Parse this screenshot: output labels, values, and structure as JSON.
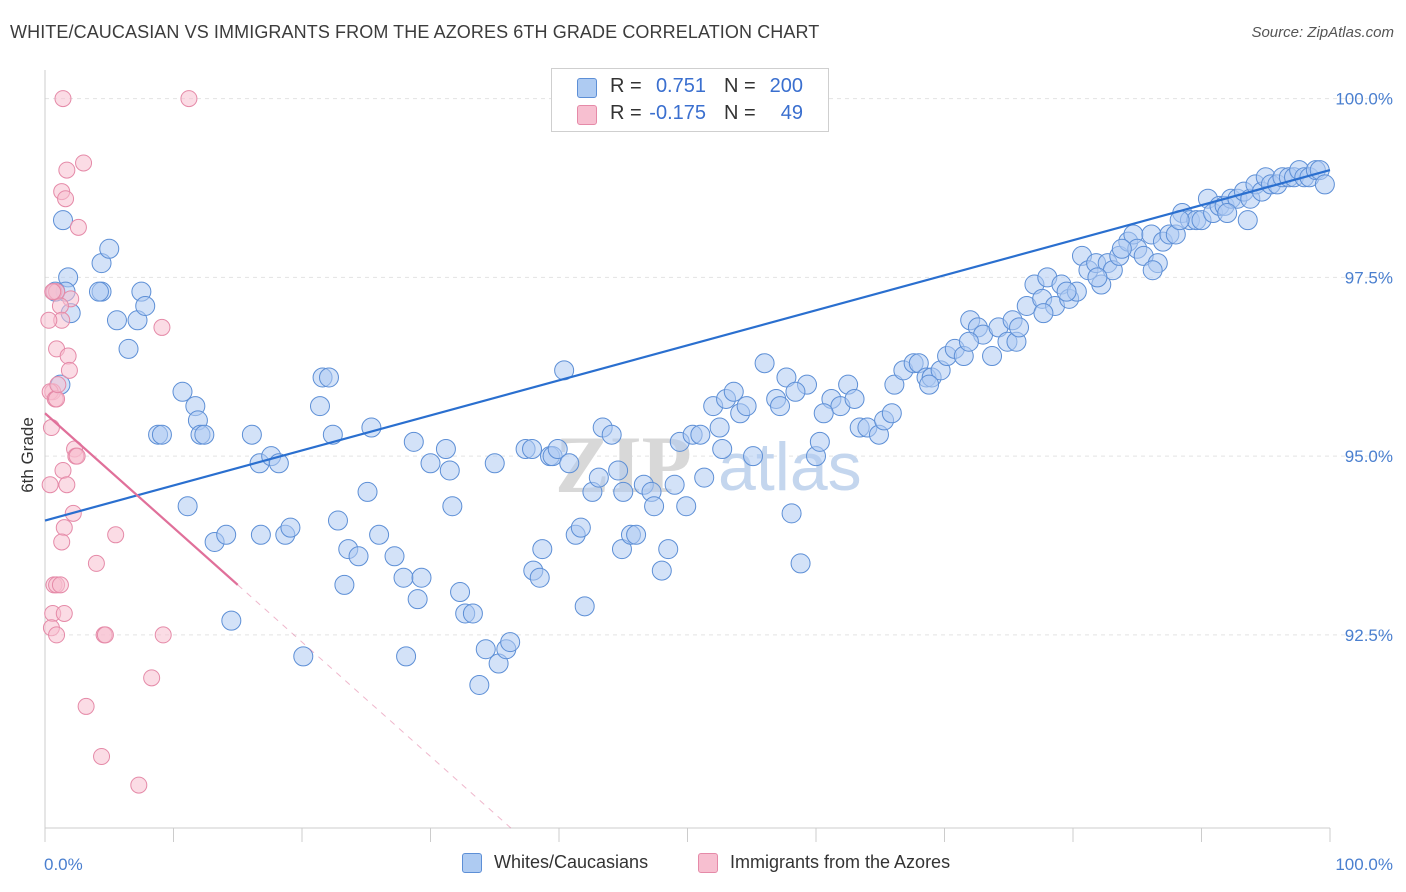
{
  "header": {
    "title": "WHITE/CAUCASIAN VS IMMIGRANTS FROM THE AZORES 6TH GRADE CORRELATION CHART",
    "source": "Source: ZipAtlas.com"
  },
  "legend": {
    "rows": [
      {
        "r_label": "R =",
        "r_value": "0.751",
        "n_label": "N =",
        "n_value": "200"
      },
      {
        "r_label": "R =",
        "r_value": "-0.175",
        "n_label": "N =",
        "n_value": "49"
      }
    ]
  },
  "watermark": {
    "zip": "ZIP",
    "atlas": "atlas"
  },
  "colors": {
    "blue_fill": "#aecbf2",
    "blue_stroke": "#5d8fd6",
    "blue_line": "#2a6fcf",
    "pink_fill": "#f7bfd0",
    "pink_stroke": "#e58aa8",
    "pink_line": "#e0709a",
    "grid": "#e3e3e3",
    "tick_text": "#4a7fcf"
  },
  "chart_data": {
    "type": "scatter",
    "title": "WHITE/CAUCASIAN VS IMMIGRANTS FROM THE AZORES 6TH GRADE CORRELATION CHART",
    "ylabel": "6th Grade",
    "xlabel": "",
    "xlim": [
      0,
      100
    ],
    "ylim": [
      89.8,
      100.4
    ],
    "x_tick_labels": [
      "0.0%",
      "100.0%"
    ],
    "y_ticks": [
      {
        "value": 92.5,
        "label": "92.5%"
      },
      {
        "value": 95.0,
        "label": "95.0%"
      },
      {
        "value": 97.5,
        "label": "97.5%"
      },
      {
        "value": 100.0,
        "label": "100.0%"
      }
    ],
    "grid": true,
    "legend_position": "top-center",
    "series": [
      {
        "name": "Whites/Caucasians",
        "color": "#aecbf2",
        "r": 0.751,
        "n": 200,
        "trend": {
          "x": [
            0,
            100
          ],
          "y": [
            94.1,
            99.0
          ]
        },
        "points": [
          [
            1.4,
            98.3
          ],
          [
            1.8,
            97.5
          ],
          [
            1.6,
            97.3
          ],
          [
            2.0,
            97.0
          ],
          [
            0.8,
            97.3
          ],
          [
            1.2,
            96.0
          ],
          [
            4.4,
            97.3
          ],
          [
            4.2,
            97.3
          ],
          [
            4.4,
            97.7
          ],
          [
            5.0,
            97.9
          ],
          [
            5.6,
            96.9
          ],
          [
            6.5,
            96.5
          ],
          [
            7.2,
            96.9
          ],
          [
            7.5,
            97.3
          ],
          [
            7.8,
            97.1
          ],
          [
            8.8,
            95.3
          ],
          [
            9.1,
            95.3
          ],
          [
            10.7,
            95.9
          ],
          [
            11.1,
            94.3
          ],
          [
            11.7,
            95.7
          ],
          [
            11.9,
            95.5
          ],
          [
            12.1,
            95.3
          ],
          [
            12.4,
            95.3
          ],
          [
            13.2,
            93.8
          ],
          [
            14.1,
            93.9
          ],
          [
            14.5,
            92.7
          ],
          [
            16.1,
            95.3
          ],
          [
            16.7,
            94.9
          ],
          [
            16.8,
            93.9
          ],
          [
            17.6,
            95.0
          ],
          [
            18.2,
            94.9
          ],
          [
            18.7,
            93.9
          ],
          [
            19.1,
            94.0
          ],
          [
            20.1,
            92.2
          ],
          [
            21.4,
            95.7
          ],
          [
            21.6,
            96.1
          ],
          [
            22.1,
            96.1
          ],
          [
            22.4,
            95.3
          ],
          [
            22.8,
            94.1
          ],
          [
            23.3,
            93.2
          ],
          [
            23.6,
            93.7
          ],
          [
            24.4,
            93.6
          ],
          [
            25.1,
            94.5
          ],
          [
            25.4,
            95.4
          ],
          [
            26.0,
            93.9
          ],
          [
            27.2,
            93.6
          ],
          [
            27.9,
            93.3
          ],
          [
            28.1,
            92.2
          ],
          [
            28.7,
            95.2
          ],
          [
            29.0,
            93.0
          ],
          [
            29.3,
            93.3
          ],
          [
            30.0,
            94.9
          ],
          [
            31.2,
            95.1
          ],
          [
            31.5,
            94.8
          ],
          [
            31.7,
            94.3
          ],
          [
            32.3,
            93.1
          ],
          [
            32.7,
            92.8
          ],
          [
            33.3,
            92.8
          ],
          [
            33.8,
            91.8
          ],
          [
            34.3,
            92.3
          ],
          [
            35.0,
            94.9
          ],
          [
            35.3,
            92.1
          ],
          [
            35.9,
            92.3
          ],
          [
            36.2,
            92.4
          ],
          [
            37.4,
            95.1
          ],
          [
            37.9,
            95.1
          ],
          [
            38.0,
            93.4
          ],
          [
            38.5,
            93.3
          ],
          [
            38.7,
            93.7
          ],
          [
            39.3,
            95.0
          ],
          [
            39.5,
            95.0
          ],
          [
            39.9,
            95.1
          ],
          [
            40.4,
            96.2
          ],
          [
            40.8,
            94.9
          ],
          [
            41.3,
            93.9
          ],
          [
            42.0,
            92.9
          ],
          [
            42.6,
            94.5
          ],
          [
            43.1,
            94.7
          ],
          [
            43.4,
            95.4
          ],
          [
            44.1,
            95.3
          ],
          [
            44.6,
            94.8
          ],
          [
            44.9,
            93.7
          ],
          [
            45.6,
            93.9
          ],
          [
            46.0,
            93.9
          ],
          [
            46.6,
            94.6
          ],
          [
            47.2,
            94.5
          ],
          [
            47.4,
            94.3
          ],
          [
            48.0,
            93.4
          ],
          [
            48.5,
            93.7
          ],
          [
            49.4,
            95.2
          ],
          [
            49.9,
            94.3
          ],
          [
            50.4,
            95.3
          ],
          [
            51.0,
            95.3
          ],
          [
            51.3,
            94.7
          ],
          [
            52.0,
            95.7
          ],
          [
            52.5,
            95.4
          ],
          [
            53.0,
            95.8
          ],
          [
            53.6,
            95.9
          ],
          [
            54.1,
            95.6
          ],
          [
            55.1,
            95.0
          ],
          [
            56.0,
            96.3
          ],
          [
            56.9,
            95.8
          ],
          [
            57.2,
            95.7
          ],
          [
            57.7,
            96.1
          ],
          [
            58.1,
            94.2
          ],
          [
            58.8,
            93.5
          ],
          [
            59.3,
            96.0
          ],
          [
            60.0,
            95.0
          ],
          [
            60.3,
            95.2
          ],
          [
            61.2,
            95.8
          ],
          [
            61.9,
            95.7
          ],
          [
            62.5,
            96.0
          ],
          [
            63.4,
            95.4
          ],
          [
            64.0,
            95.4
          ],
          [
            64.9,
            95.3
          ],
          [
            65.3,
            95.5
          ],
          [
            66.1,
            96.0
          ],
          [
            66.8,
            96.2
          ],
          [
            67.6,
            96.3
          ],
          [
            68.0,
            96.3
          ],
          [
            68.6,
            96.1
          ],
          [
            69.0,
            96.1
          ],
          [
            69.7,
            96.2
          ],
          [
            70.2,
            96.4
          ],
          [
            70.8,
            96.5
          ],
          [
            71.5,
            96.4
          ],
          [
            72.0,
            96.9
          ],
          [
            72.6,
            96.8
          ],
          [
            73.0,
            96.7
          ],
          [
            73.7,
            96.4
          ],
          [
            74.2,
            96.8
          ],
          [
            74.9,
            96.6
          ],
          [
            75.3,
            96.9
          ],
          [
            75.6,
            96.6
          ],
          [
            76.4,
            97.1
          ],
          [
            77.0,
            97.4
          ],
          [
            77.6,
            97.2
          ],
          [
            78.0,
            97.5
          ],
          [
            78.6,
            97.1
          ],
          [
            79.1,
            97.4
          ],
          [
            79.7,
            97.2
          ],
          [
            80.3,
            97.3
          ],
          [
            80.7,
            97.8
          ],
          [
            81.2,
            97.6
          ],
          [
            81.8,
            97.7
          ],
          [
            82.2,
            97.4
          ],
          [
            82.7,
            97.7
          ],
          [
            83.1,
            97.6
          ],
          [
            83.6,
            97.8
          ],
          [
            84.3,
            98.0
          ],
          [
            84.7,
            98.1
          ],
          [
            85.0,
            97.9
          ],
          [
            85.5,
            97.8
          ],
          [
            86.1,
            98.1
          ],
          [
            86.6,
            97.7
          ],
          [
            87.0,
            98.0
          ],
          [
            87.5,
            98.1
          ],
          [
            88.0,
            98.1
          ],
          [
            88.5,
            98.4
          ],
          [
            89.1,
            98.3
          ],
          [
            89.6,
            98.3
          ],
          [
            90.0,
            98.3
          ],
          [
            90.5,
            98.6
          ],
          [
            90.9,
            98.4
          ],
          [
            91.4,
            98.5
          ],
          [
            91.8,
            98.5
          ],
          [
            92.3,
            98.6
          ],
          [
            92.8,
            98.6
          ],
          [
            93.3,
            98.7
          ],
          [
            93.8,
            98.6
          ],
          [
            94.2,
            98.8
          ],
          [
            94.7,
            98.7
          ],
          [
            95.0,
            98.9
          ],
          [
            95.4,
            98.8
          ],
          [
            95.9,
            98.8
          ],
          [
            96.3,
            98.9
          ],
          [
            96.8,
            98.9
          ],
          [
            97.2,
            98.9
          ],
          [
            97.6,
            99.0
          ],
          [
            98.0,
            98.9
          ],
          [
            98.4,
            98.9
          ],
          [
            98.9,
            99.0
          ],
          [
            99.2,
            99.0
          ],
          [
            99.6,
            98.8
          ],
          [
            93.6,
            98.3
          ],
          [
            92.0,
            98.4
          ],
          [
            88.3,
            98.3
          ],
          [
            86.2,
            97.6
          ],
          [
            83.8,
            97.9
          ],
          [
            81.9,
            97.5
          ],
          [
            79.5,
            97.3
          ],
          [
            77.7,
            97.0
          ],
          [
            75.8,
            96.8
          ],
          [
            71.9,
            96.6
          ],
          [
            68.8,
            96.0
          ],
          [
            65.9,
            95.6
          ],
          [
            63.0,
            95.8
          ],
          [
            60.6,
            95.6
          ],
          [
            58.4,
            95.9
          ],
          [
            54.6,
            95.7
          ],
          [
            52.7,
            95.1
          ],
          [
            49.0,
            94.6
          ],
          [
            45.0,
            94.5
          ],
          [
            41.7,
            94.0
          ]
        ]
      },
      {
        "name": "Immigrants from the Azores",
        "color": "#f7bfd0",
        "r": -0.175,
        "n": 49,
        "trend": {
          "x": [
            0,
            15
          ],
          "y": [
            95.6,
            93.2
          ]
        },
        "points": [
          [
            1.4,
            100.0
          ],
          [
            11.2,
            100.0
          ],
          [
            3.0,
            99.1
          ],
          [
            1.7,
            99.0
          ],
          [
            1.3,
            98.7
          ],
          [
            1.6,
            98.6
          ],
          [
            2.6,
            98.2
          ],
          [
            0.7,
            97.3
          ],
          [
            0.9,
            97.3
          ],
          [
            2.0,
            97.2
          ],
          [
            1.2,
            97.1
          ],
          [
            1.3,
            96.9
          ],
          [
            0.3,
            96.9
          ],
          [
            9.1,
            96.8
          ],
          [
            0.9,
            96.5
          ],
          [
            1.8,
            96.4
          ],
          [
            1.9,
            96.2
          ],
          [
            0.6,
            95.9
          ],
          [
            0.4,
            95.9
          ],
          [
            0.8,
            95.8
          ],
          [
            0.9,
            95.8
          ],
          [
            0.5,
            95.4
          ],
          [
            2.3,
            95.1
          ],
          [
            2.4,
            95.0
          ],
          [
            2.5,
            95.0
          ],
          [
            1.4,
            94.8
          ],
          [
            0.4,
            94.6
          ],
          [
            1.7,
            94.6
          ],
          [
            2.2,
            94.2
          ],
          [
            1.5,
            94.0
          ],
          [
            5.5,
            93.9
          ],
          [
            1.3,
            93.8
          ],
          [
            4.0,
            93.5
          ],
          [
            0.7,
            93.2
          ],
          [
            0.9,
            93.2
          ],
          [
            1.2,
            93.2
          ],
          [
            0.6,
            92.8
          ],
          [
            1.5,
            92.8
          ],
          [
            0.5,
            92.6
          ],
          [
            0.9,
            92.5
          ],
          [
            4.6,
            92.5
          ],
          [
            4.7,
            92.5
          ],
          [
            9.2,
            92.5
          ],
          [
            8.3,
            91.9
          ],
          [
            3.2,
            91.5
          ],
          [
            4.4,
            90.8
          ],
          [
            7.3,
            90.4
          ],
          [
            1.0,
            96.0
          ],
          [
            0.6,
            97.3
          ]
        ]
      }
    ]
  },
  "bottom_legend": [
    {
      "label": "Whites/Caucasians"
    },
    {
      "label": "Immigrants from the Azores"
    }
  ]
}
